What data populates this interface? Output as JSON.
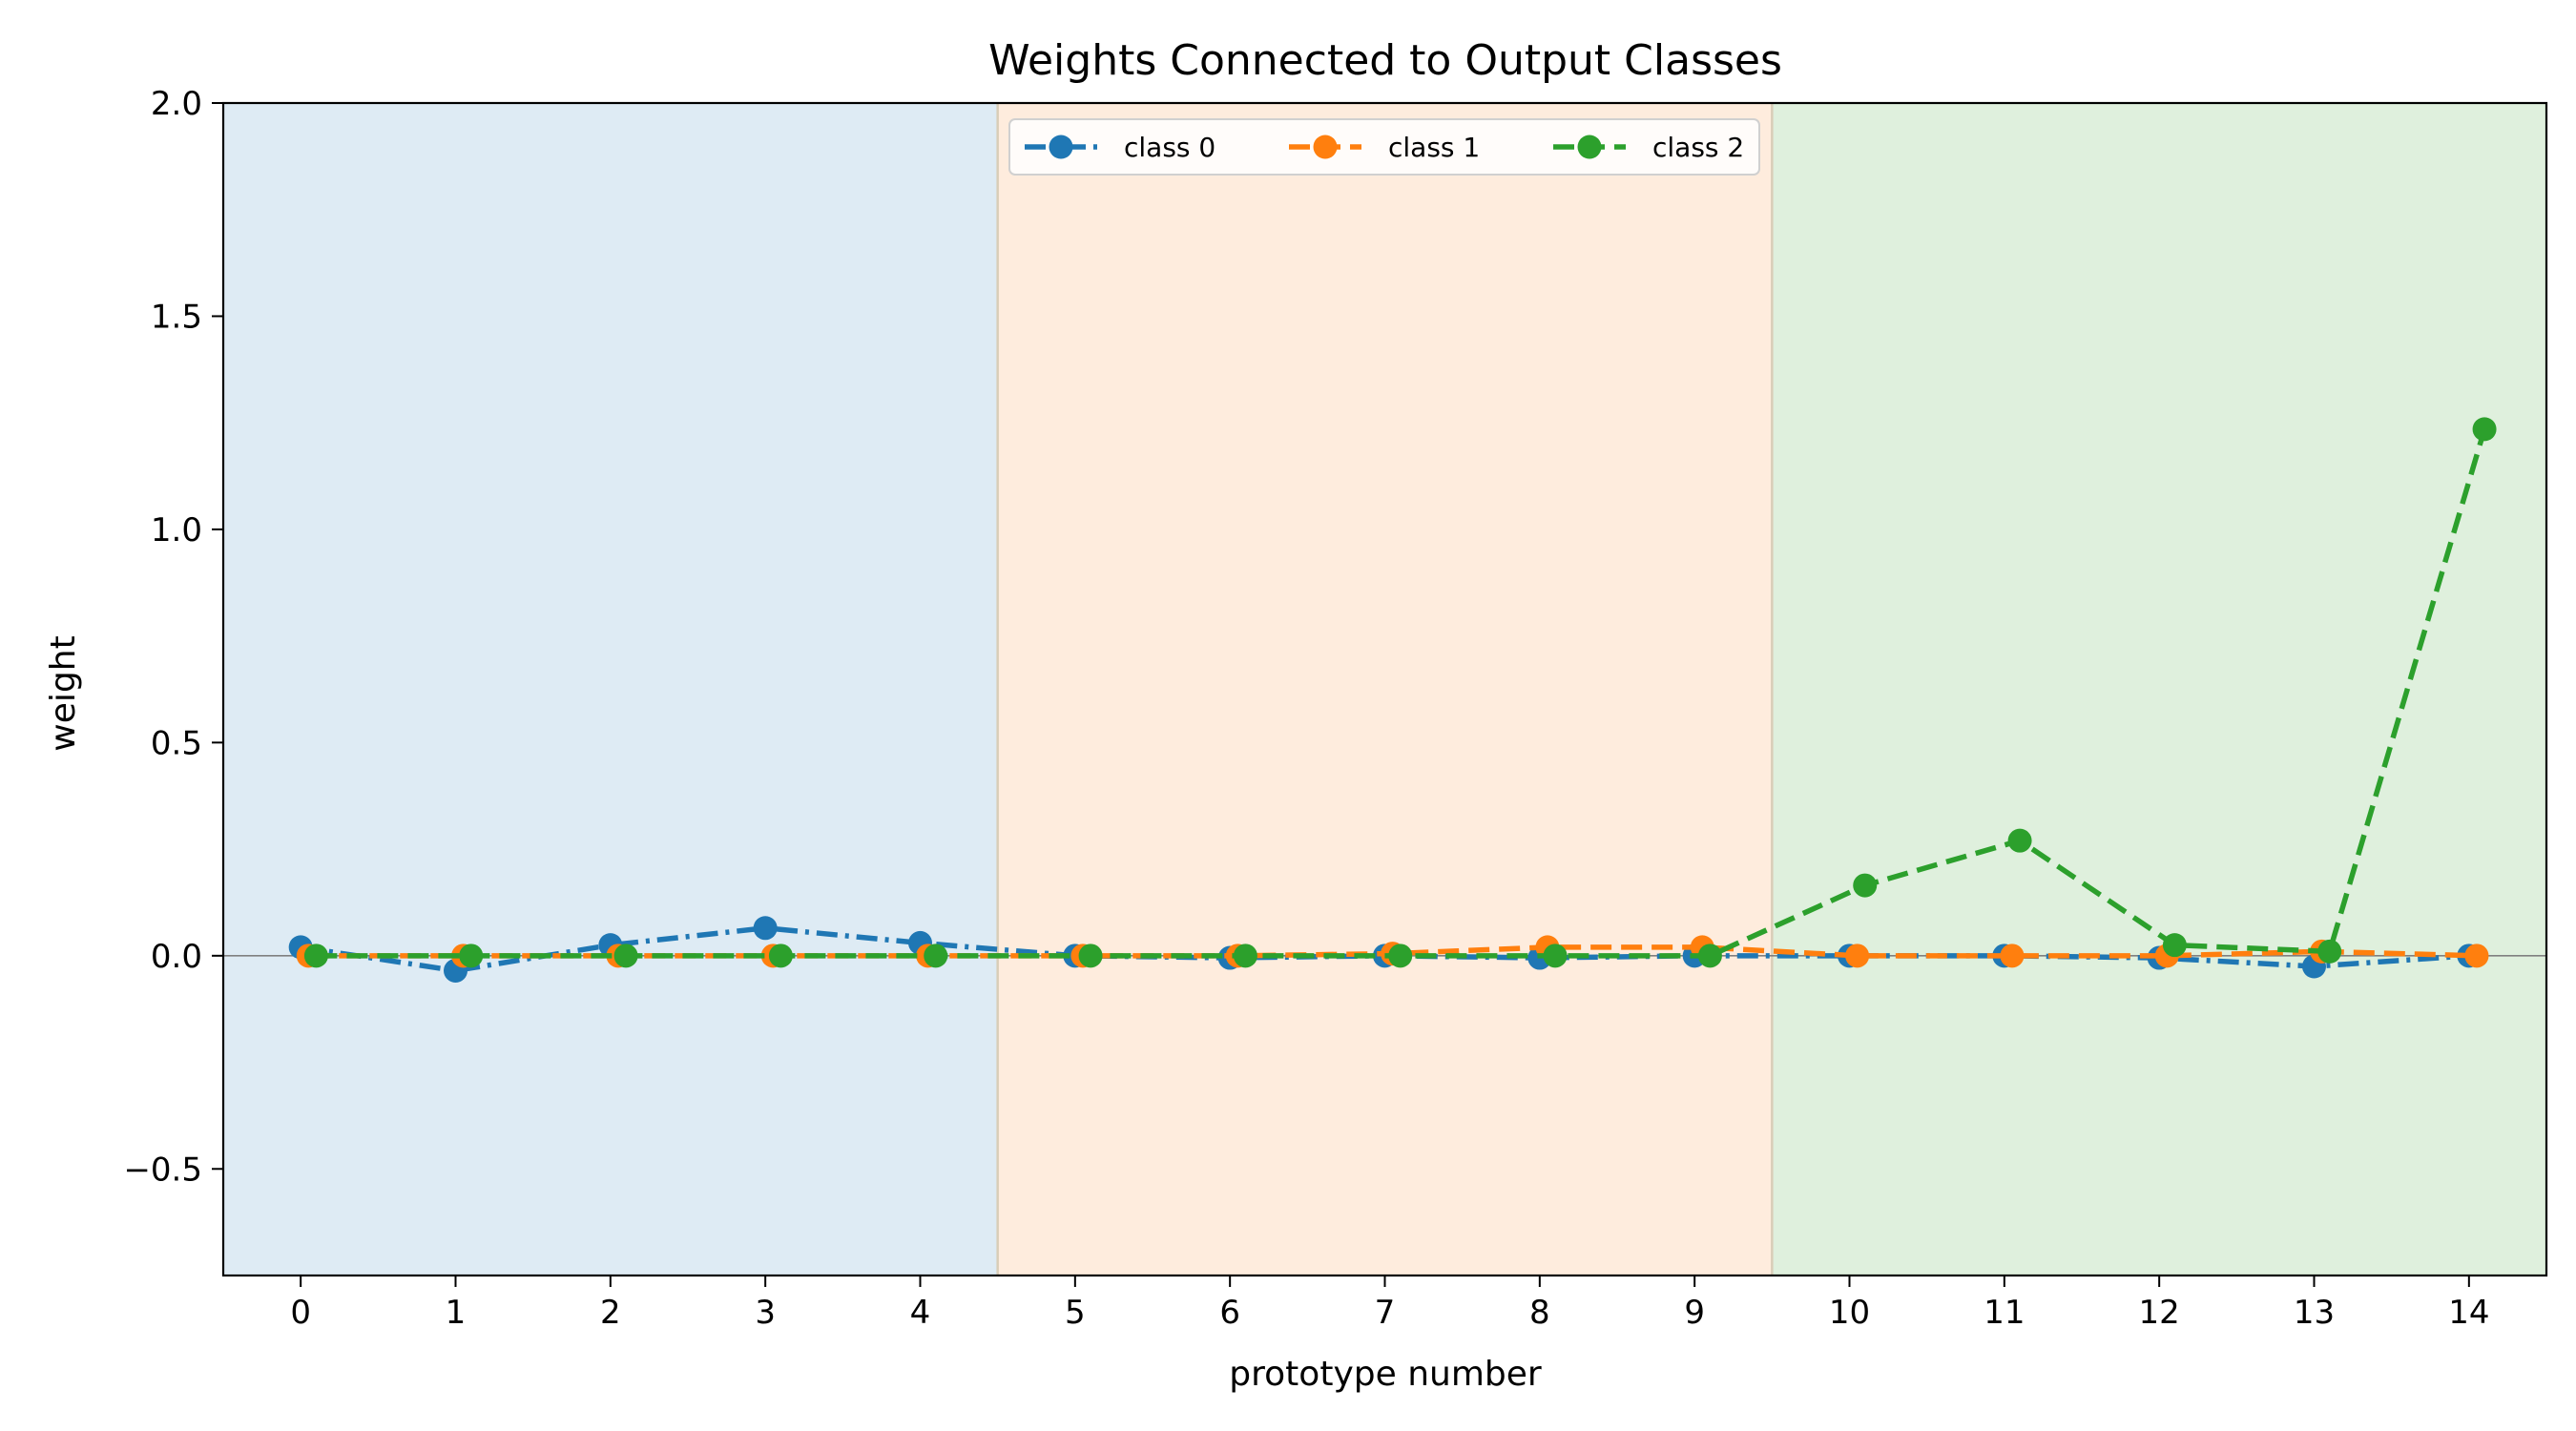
{
  "chart_data": {
    "type": "line",
    "title": "Weights Connected to Output Classes",
    "xlabel": "prototype number",
    "ylabel": "weight",
    "xlim": [
      -0.5,
      14.5
    ],
    "ylim": [
      -0.75,
      2.0
    ],
    "x_ticks": [
      0,
      1,
      2,
      3,
      4,
      5,
      6,
      7,
      8,
      9,
      10,
      11,
      12,
      13,
      14
    ],
    "x_tick_labels": [
      "0",
      "1",
      "2",
      "3",
      "4",
      "5",
      "6",
      "7",
      "8",
      "9",
      "10",
      "11",
      "12",
      "13",
      "14"
    ],
    "y_ticks": [
      -0.5,
      0.0,
      0.5,
      1.0,
      1.5,
      2.0
    ],
    "y_tick_labels": [
      "−0.5",
      "0.0",
      "0.5",
      "1.0",
      "1.5",
      "2.0"
    ],
    "grid": false,
    "baseline_y": 0,
    "legend": {
      "placement": "top-center",
      "columns": 3
    },
    "bands": [
      {
        "x_start": -0.5,
        "x_end": 4.5,
        "color": "#deebf4"
      },
      {
        "x_start": 4.5,
        "x_end": 9.5,
        "color": "#feecdd"
      },
      {
        "x_start": 9.5,
        "x_end": 14.5,
        "color": "#dff0dd"
      }
    ],
    "series": [
      {
        "name": "class 0",
        "color": "#1f77b4",
        "dash": "dashdot",
        "x_offset": 0.0,
        "x": [
          0,
          1,
          2,
          3,
          4,
          5,
          6,
          7,
          8,
          9,
          10,
          11,
          12,
          13,
          14
        ],
        "values": [
          0.02,
          -0.035,
          0.025,
          0.065,
          0.03,
          0.0,
          -0.005,
          0.0,
          -0.005,
          0.0,
          0.0,
          0.0,
          -0.005,
          -0.025,
          0.0
        ]
      },
      {
        "name": "class 1",
        "color": "#ff7f0e",
        "dash": "dashed",
        "x_offset": 0.05,
        "x": [
          0,
          1,
          2,
          3,
          4,
          5,
          6,
          7,
          8,
          9,
          10,
          11,
          12,
          13,
          14
        ],
        "values": [
          0.0,
          0.0,
          0.0,
          0.0,
          0.0,
          0.0,
          0.0,
          0.005,
          0.02,
          0.02,
          0.0,
          0.0,
          0.0,
          0.01,
          0.0
        ]
      },
      {
        "name": "class 2",
        "color": "#2ca02c",
        "dash": "dashed",
        "x_offset": 0.1,
        "x": [
          0,
          1,
          2,
          3,
          4,
          5,
          6,
          7,
          8,
          9,
          10,
          11,
          12,
          13,
          14
        ],
        "values": [
          0.0,
          0.0,
          0.0,
          0.0,
          0.0,
          0.0,
          0.0,
          0.0,
          0.0,
          0.0,
          0.165,
          0.27,
          0.025,
          0.01,
          1.235
        ]
      }
    ]
  }
}
